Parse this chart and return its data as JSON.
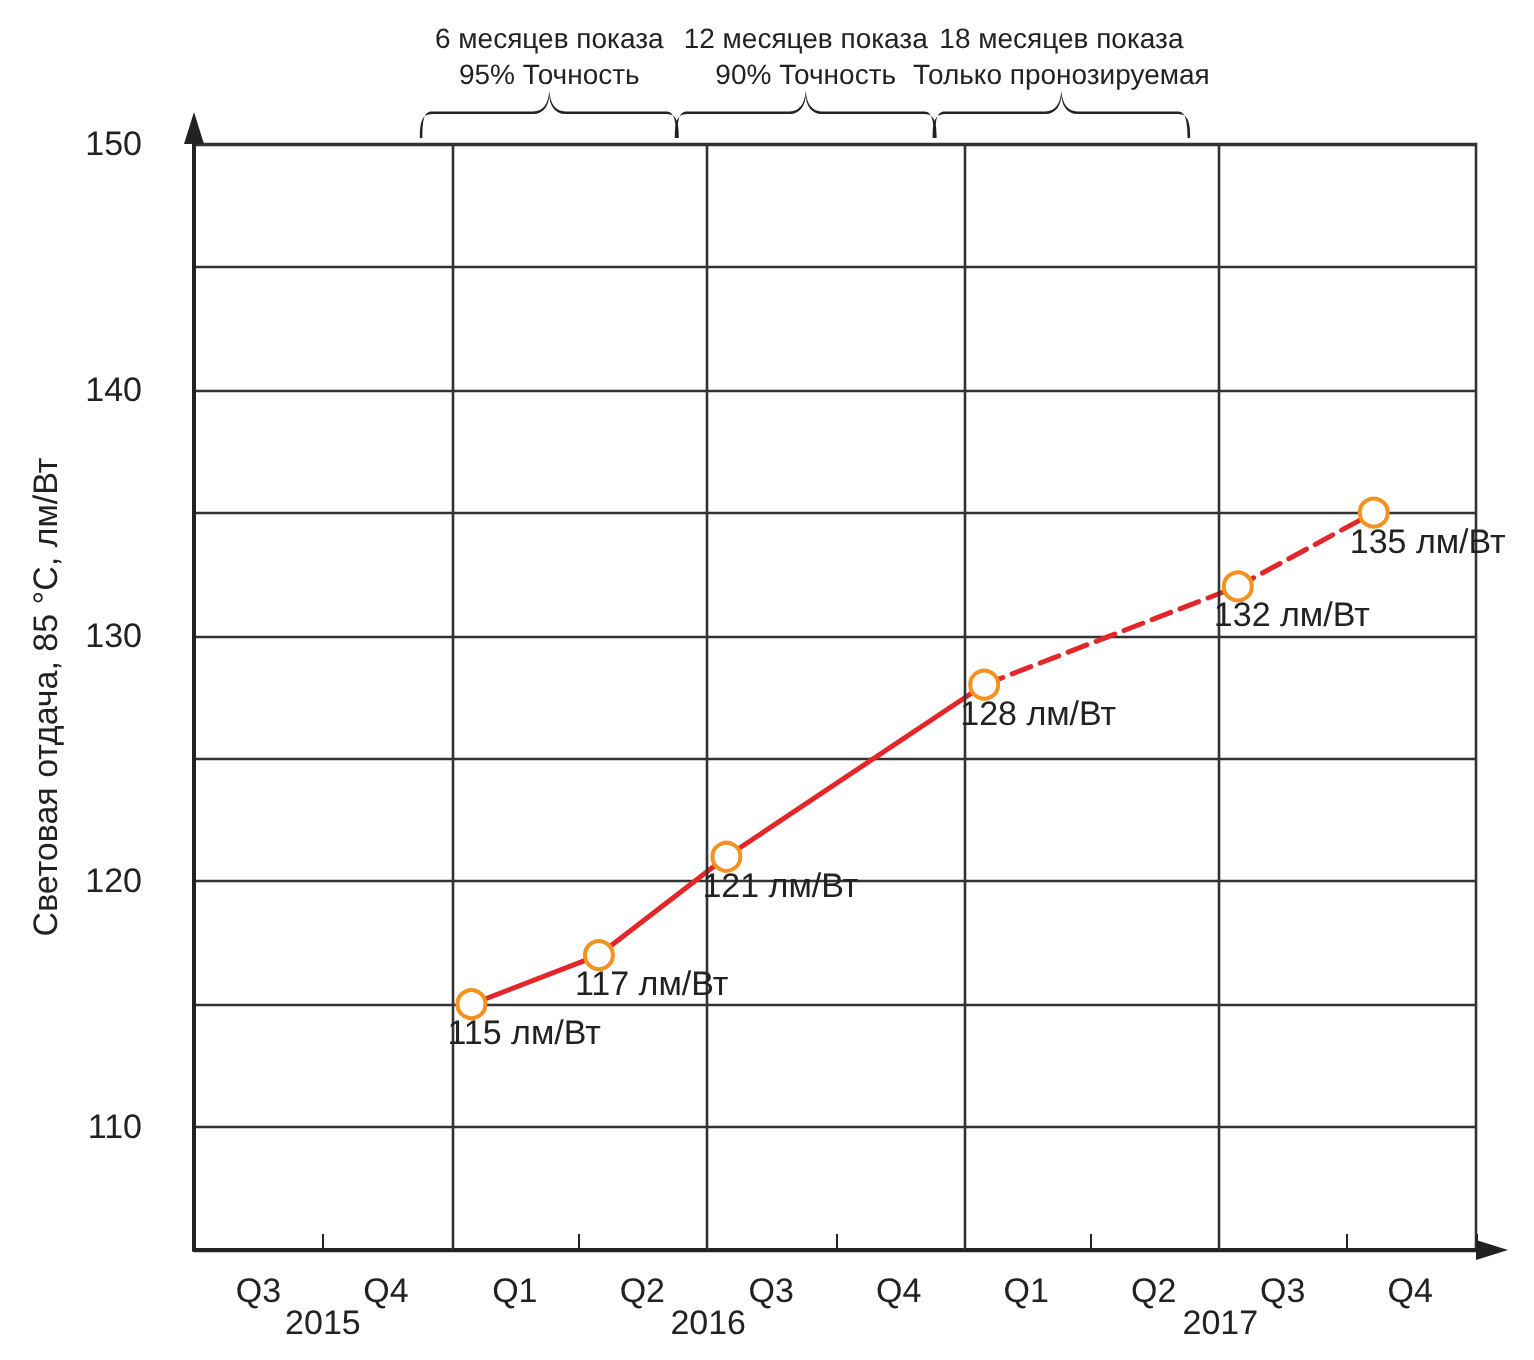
{
  "chart_data": {
    "type": "line",
    "ylabel": "Световая отдача, 85 °C, лм/Вт",
    "xlim": [
      "2015-07-01",
      "2018-01-01"
    ],
    "xticks": [
      {
        "value": "2015-07-01",
        "label": null
      },
      {
        "value": "2015-10-01",
        "label": null
      },
      {
        "value": "2016-01-01",
        "label": null
      },
      {
        "value": "2016-04-01",
        "label": null
      },
      {
        "value": "2016-07-01",
        "label": null
      },
      {
        "value": "2016-10-01",
        "label": null
      },
      {
        "value": "2017-01-01",
        "label": null
      },
      {
        "value": "2017-04-01",
        "label": null
      },
      {
        "value": "2017-07-01",
        "label": null
      },
      {
        "value": "2017-10-01",
        "label": null
      },
      {
        "value": "2018-01-01",
        "label": null
      },
      {
        "value": "2015-08-16",
        "label": "Q3"
      },
      {
        "value": "2015-11-15",
        "label": "Q4"
      },
      {
        "value": "2016-02-15",
        "label": "Q1"
      },
      {
        "value": "2016-05-16",
        "label": "Q2"
      },
      {
        "value": "2016-08-16",
        "label": "Q3"
      },
      {
        "value": "2016-11-15",
        "label": "Q4"
      },
      {
        "value": "2017-02-14",
        "label": "Q1"
      },
      {
        "value": "2017-05-16",
        "label": "Q2"
      },
      {
        "value": "2017-08-16",
        "label": "Q3"
      },
      {
        "value": "2017-11-15",
        "label": "Q4"
      }
    ],
    "ylim": [
      105,
      150
    ],
    "yticks": [
      {
        "value": 105,
        "label": null
      },
      110,
      {
        "value": 115,
        "label": null
      },
      120,
      {
        "value": 125,
        "label": null
      },
      130,
      {
        "value": 135,
        "label": null
      },
      140,
      {
        "value": 145,
        "label": null
      },
      150
    ],
    "grid": "y",
    "ref_lines": [
      {
        "axis": "x",
        "value": "2016-01-01",
        "color": "#333333"
      },
      {
        "axis": "x",
        "value": "2016-07-01",
        "color": "#333333"
      },
      {
        "axis": "x",
        "value": "2017-01-01",
        "color": "#333333"
      },
      {
        "axis": "x",
        "value": "2017-07-01",
        "color": "#333333"
      }
    ],
    "annotations": [
      "6 месяцев показа\n95% Точность",
      "12 месяцев показа\n90% Точность",
      "18 месяцев показа\nТолько пронозируемая",
      "2015",
      "2016",
      "2017"
    ],
    "series": [
      {
        "color": "#e3262a",
        "line_style": "solid",
        "marker": "none",
        "x": [
          "2016-01-15",
          "2016-04-15",
          "2016-07-15",
          "2017-01-15"
        ],
        "values": [
          115,
          117,
          121,
          128
        ]
      },
      {
        "color": "#e3262a",
        "line_style": "dashed",
        "marker": "none",
        "x": [
          "2017-01-15",
          "2017-07-15",
          "2017-10-20"
        ],
        "values": [
          128,
          132,
          135
        ]
      },
      {
        "type": "scatter",
        "color": "#f39221",
        "marker": "circle",
        "x": [
          "2016-01-15",
          "2016-04-15",
          "2016-07-15",
          "2017-01-15",
          "2017-07-15",
          "2017-10-20"
        ],
        "values": [
          115,
          117,
          121,
          128,
          132,
          135
        ],
        "value_labels": [
          "115 лм/Вт",
          "117 лм/Вт",
          "121 лм/Вт",
          "128 лм/Вт",
          "132 лм/Вт",
          "135 лм/Вт"
        ]
      }
    ]
  }
}
